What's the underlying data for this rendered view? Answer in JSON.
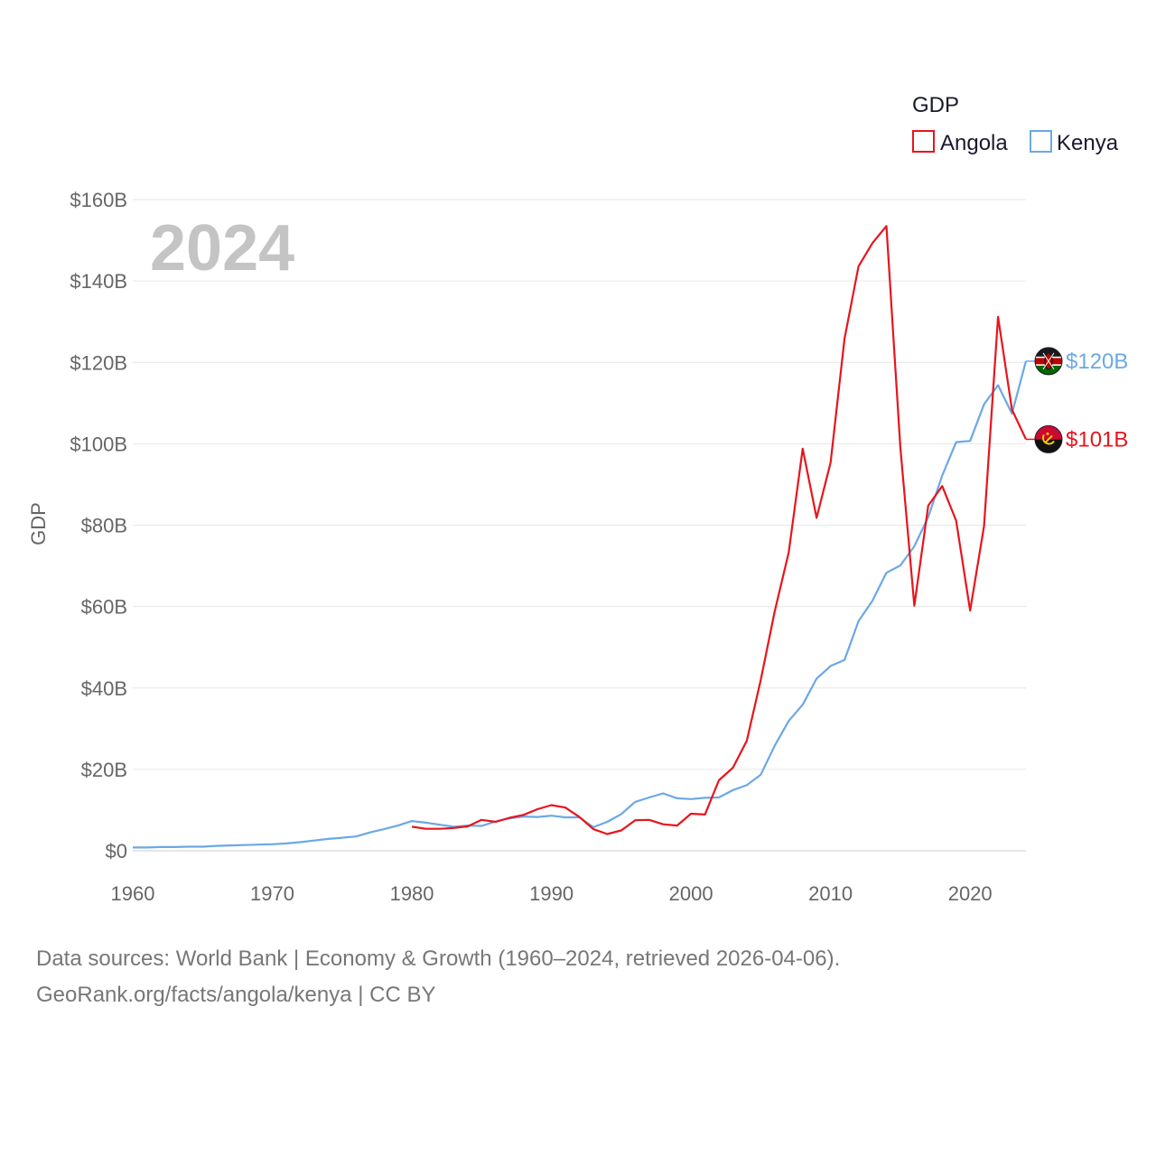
{
  "chart_data": {
    "type": "line",
    "title": "GDP",
    "year_label": "2024",
    "ylabel": "GDP",
    "xlabel": "",
    "xlim": [
      1960,
      2024
    ],
    "ylim": [
      0,
      160
    ],
    "x_ticks": [
      1960,
      1970,
      1980,
      1990,
      2000,
      2010,
      2020
    ],
    "y_ticks": [
      0,
      20,
      40,
      60,
      80,
      100,
      120,
      140,
      160
    ],
    "y_tick_labels": [
      "$0",
      "$20B",
      "$40B",
      "$60B",
      "$80B",
      "$100B",
      "$120B",
      "$140B",
      "$160B"
    ],
    "legend_position": "top-right",
    "grid": true,
    "series": [
      {
        "name": "Angola",
        "color": "#e8141c",
        "flag": "angola-flag-icon",
        "end_label": "$101B",
        "x": [
          1980,
          1981,
          1982,
          1983,
          1984,
          1985,
          1986,
          1987,
          1988,
          1989,
          1990,
          1991,
          1992,
          1993,
          1994,
          1995,
          1996,
          1997,
          1998,
          1999,
          2000,
          2001,
          2002,
          2003,
          2004,
          2005,
          2006,
          2007,
          2008,
          2009,
          2010,
          2011,
          2012,
          2013,
          2014,
          2015,
          2016,
          2017,
          2018,
          2019,
          2020,
          2021,
          2022,
          2023,
          2024
        ],
        "values": [
          5.9,
          5.4,
          5.4,
          5.6,
          6.0,
          7.6,
          7.1,
          8.1,
          8.8,
          10.2,
          11.2,
          10.6,
          8.3,
          5.3,
          4.1,
          5.0,
          7.5,
          7.6,
          6.5,
          6.2,
          9.1,
          8.9,
          17.3,
          20.4,
          27.0,
          42.0,
          58.8,
          73.3,
          98.8,
          81.8,
          95.4,
          125.8,
          143.6,
          149.3,
          153.5,
          99.2,
          60.2,
          84.8,
          89.6,
          81.1,
          59.0,
          79.8,
          131.2,
          108.4,
          101.1
        ]
      },
      {
        "name": "Kenya",
        "color": "#6ba8e5",
        "flag": "kenya-flag-icon",
        "end_label": "$120B",
        "x": [
          1960,
          1961,
          1962,
          1963,
          1964,
          1965,
          1966,
          1967,
          1968,
          1969,
          1970,
          1971,
          1972,
          1973,
          1974,
          1975,
          1976,
          1977,
          1978,
          1979,
          1980,
          1981,
          1982,
          1983,
          1984,
          1985,
          1986,
          1987,
          1988,
          1989,
          1990,
          1991,
          1992,
          1993,
          1994,
          1995,
          1996,
          1997,
          1998,
          1999,
          2000,
          2001,
          2002,
          2003,
          2004,
          2005,
          2006,
          2007,
          2008,
          2009,
          2010,
          2011,
          2012,
          2013,
          2014,
          2015,
          2016,
          2017,
          2018,
          2019,
          2020,
          2021,
          2022,
          2023,
          2024
        ],
        "values": [
          0.8,
          0.8,
          0.9,
          0.9,
          1.0,
          1.0,
          1.2,
          1.3,
          1.4,
          1.5,
          1.6,
          1.8,
          2.1,
          2.5,
          2.9,
          3.2,
          3.5,
          4.5,
          5.3,
          6.2,
          7.3,
          6.9,
          6.4,
          5.9,
          6.2,
          6.1,
          7.2,
          7.97,
          8.4,
          8.3,
          8.6,
          8.2,
          8.2,
          5.8,
          7.1,
          9.0,
          12.0,
          13.1,
          14.1,
          12.9,
          12.7,
          13.0,
          13.1,
          14.9,
          16.1,
          18.7,
          25.8,
          31.9,
          35.9,
          42.3,
          45.4,
          46.9,
          56.4,
          61.4,
          68.3,
          70.1,
          74.8,
          82.0,
          92.2,
          100.4,
          100.7,
          109.7,
          114.4,
          107.4,
          120.3
        ]
      }
    ]
  },
  "footer": {
    "line1": "Data sources: World Bank | Economy & Growth (1960–2024, retrieved 2026-04-06).",
    "line2": "GeoRank.org/facts/angola/kenya | CC BY"
  }
}
